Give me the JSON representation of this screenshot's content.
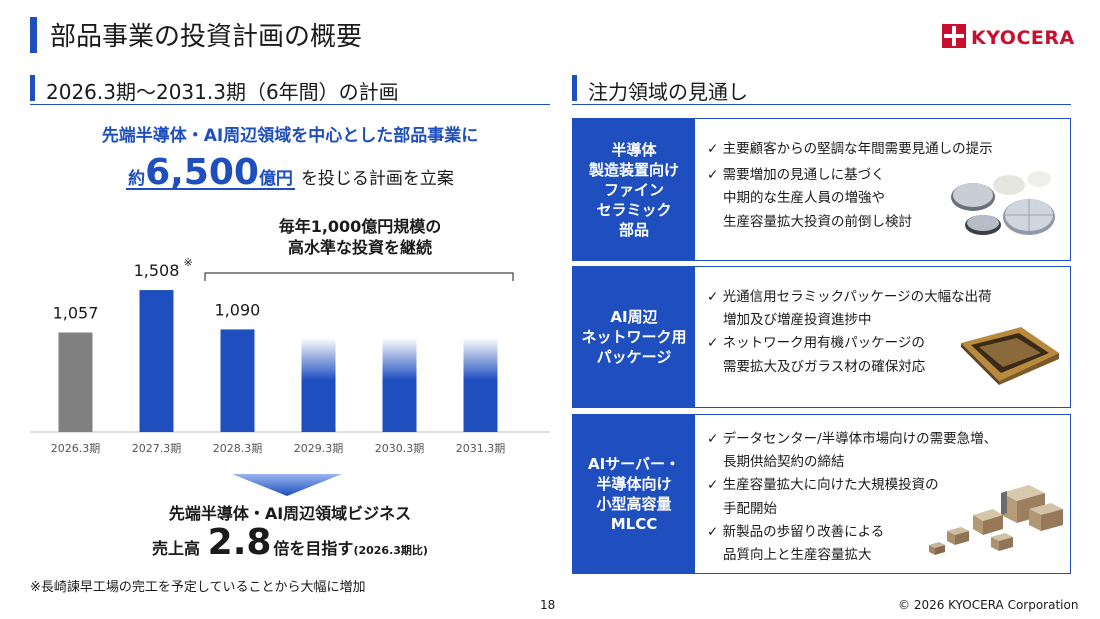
{
  "header": {
    "title": "部品事業の投資計画の概要",
    "logo_text": "KYOCERA"
  },
  "left": {
    "section_title": "2026.3期～2031.3期（6年間）の計画",
    "lead_line1": "先端半導体・AI周辺領域を中心とした部品事業に",
    "lead_prefix": "約",
    "lead_amount": "6,500",
    "lead_unit": "億円",
    "lead_rest": "を投じる計画を立案",
    "callout_line1": "毎年1,000億円規模の",
    "callout_line2": "高水準な投資を継続",
    "biz_line": "先端半導体・AI周辺領域ビジネス",
    "target_prefix": "売上高",
    "target_value": "2.8",
    "target_suffix": "倍を目指す",
    "target_note": "(2026.3期比)",
    "footnote": "※長崎諫早工場の完工を予定していることから大幅に増加"
  },
  "chart_data": {
    "type": "bar",
    "categories": [
      "2026.3期",
      "2027.3期",
      "2028.3期",
      "2029.3期",
      "2030.3期",
      "2031.3期"
    ],
    "values": [
      1057,
      1508,
      1090,
      null,
      null,
      null
    ],
    "value_labels": [
      "1,057",
      "1,508",
      "1,090",
      "",
      "",
      ""
    ],
    "value_label_marks": [
      "",
      "※",
      "",
      "",
      "",
      ""
    ],
    "bar_styles": [
      "actual",
      "plan",
      "plan",
      "projected",
      "projected",
      "projected"
    ],
    "colors": {
      "actual": "#808080",
      "plan": "#1f4fbf",
      "projected_top": "#ffffff",
      "projected_bottom": "#1f4fbf"
    },
    "projected_level_approx": 1000,
    "ylim": [
      0,
      1700
    ],
    "grid": false
  },
  "right": {
    "section_title": "注力領域の見通し",
    "panels": [
      {
        "head": "半導体\n製造装置向け\nファイン\nセラミック\n部品",
        "items": [
          [
            "主要顧客からの堅調な年間需要見通しの提示"
          ],
          [
            "需要増加の見通しに基づく",
            "中期的な生産人員の増強や",
            "生産容量拡大投資の前倒し検討"
          ]
        ]
      },
      {
        "head": "AI周辺\nネットワーク用\nパッケージ",
        "items": [
          [
            "光通信用セラミックパッケージの大幅な出荷",
            "増加及び増産投資進捗中"
          ],
          [
            "ネットワーク用有機パッケージの",
            "需要拡大及びガラス材の確保対応"
          ]
        ]
      },
      {
        "head": "AIサーバー・\n半導体向け\n小型高容量\nMLCC",
        "items": [
          [
            "データセンター/半導体市場向けの需要急増、",
            "長期供給契約の締結"
          ],
          [
            "生産容量拡大に向けた大規模投資の",
            "手配開始"
          ],
          [
            "新製品の歩留り改善による",
            "品質向上と生産容量拡大"
          ]
        ]
      }
    ]
  },
  "footer": {
    "page_number": "18",
    "copyright": "© 2026 KYOCERA Corporation"
  },
  "icons": {
    "check": "check-icon"
  }
}
